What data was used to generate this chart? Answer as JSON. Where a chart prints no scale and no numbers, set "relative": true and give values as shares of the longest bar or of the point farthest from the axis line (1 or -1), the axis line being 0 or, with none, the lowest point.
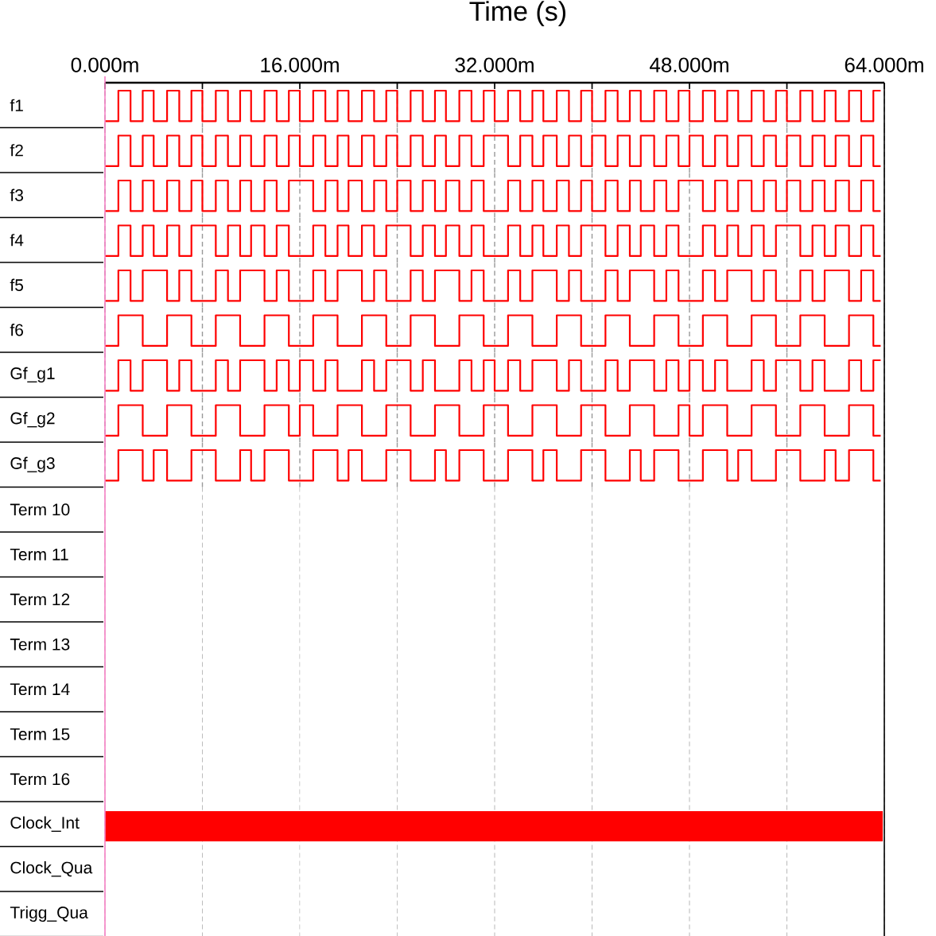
{
  "chart_data": [
    {
      "type": "step",
      "title": "Time (s)",
      "ylabel": "f1",
      "relative": true,
      "xlim": [
        0,
        64
      ],
      "xticks": [
        {
          "value": 0,
          "label": "0.000m"
        },
        {
          "value": 8,
          "label": null
        },
        {
          "value": 16,
          "label": "16.000m"
        },
        {
          "value": 24,
          "label": null
        },
        {
          "value": 32,
          "label": "32.000m"
        },
        {
          "value": 40,
          "label": null
        },
        {
          "value": 48,
          "label": "48.000m"
        },
        {
          "value": 56,
          "label": null
        },
        {
          "value": 64,
          "label": "64.000m"
        }
      ],
      "tick_labels": "x",
      "grid": "x",
      "color": "#ff0000",
      "x": [
        0,
        1.1,
        2.1,
        3.1,
        4,
        5.1,
        6.1,
        7.1,
        8,
        9.1,
        10.1,
        11.1,
        12,
        13.1,
        14.1,
        15.1,
        16,
        17.1,
        18.1,
        19.1,
        20,
        21.1,
        22.1,
        23.1,
        24,
        25.1,
        26.1,
        27.1,
        28,
        29.1,
        30.1,
        31.1,
        32,
        33.1,
        34.1,
        35.1,
        36,
        37.1,
        38.1,
        39.1,
        40,
        41.1,
        42.1,
        43.1,
        44,
        45.1,
        46.1,
        47.1,
        48,
        49.1,
        50.1,
        51.1,
        52,
        53.1,
        54.1,
        55.1,
        56,
        57.1,
        58.1,
        59.1,
        60,
        61.1,
        62.1,
        63.1,
        63.7
      ],
      "values": [
        0,
        1,
        0,
        1,
        0,
        1,
        0,
        1,
        0,
        1,
        0,
        1,
        0,
        1,
        0,
        1,
        0,
        1,
        0,
        1,
        0,
        1,
        0,
        1,
        0,
        1,
        0,
        1,
        0,
        1,
        0,
        1,
        0,
        1,
        0,
        1,
        0,
        1,
        0,
        1,
        0,
        1,
        0,
        1,
        0,
        1,
        0,
        1,
        0,
        1,
        0,
        1,
        0,
        1,
        0,
        1,
        0,
        1,
        0,
        1,
        0,
        1,
        0,
        1,
        1
      ]
    },
    {
      "type": "step",
      "ylabel": "f2",
      "relative": true,
      "xlim": [
        0,
        64
      ],
      "xticks": [
        0,
        8,
        16,
        24,
        32,
        40,
        48,
        56,
        64
      ],
      "tick_labels": false,
      "grid": "x",
      "color": "#ff0000",
      "x": [
        0,
        1.1,
        2.1,
        3.1,
        4,
        5.1,
        6.1,
        7.1,
        8,
        9.1,
        10.1,
        11.1,
        12,
        13.1,
        14.1,
        15.1,
        16,
        17.1,
        18.1,
        19.1,
        20,
        21.1,
        22.1,
        23.1,
        24,
        25.1,
        26.1,
        27.1,
        28,
        29.1,
        30.1,
        31.1,
        32,
        33.1,
        34.1,
        35.1,
        36,
        37.1,
        38.1,
        39.1,
        40,
        41.1,
        42.1,
        43.1,
        44,
        45.1,
        46.1,
        47.1,
        48,
        49.1,
        50.1,
        51.1,
        52,
        53.1,
        54.1,
        55.1,
        56,
        57.1,
        58.1,
        59.1,
        60,
        61.1,
        62.1,
        63.1,
        63.7
      ],
      "values": [
        0,
        1,
        0,
        1,
        0,
        1,
        0,
        1,
        0,
        1,
        0,
        1,
        0,
        1,
        0,
        1,
        0,
        1,
        0,
        1,
        0,
        1,
        0,
        1,
        0,
        1,
        0,
        1,
        0,
        1,
        0,
        1,
        1,
        0,
        1,
        0,
        1,
        0,
        1,
        0,
        1,
        0,
        1,
        0,
        1,
        0,
        1,
        0,
        1,
        0,
        1,
        0,
        1,
        0,
        1,
        0,
        1,
        0,
        1,
        0,
        1,
        0,
        1,
        0,
        0
      ]
    },
    {
      "type": "step",
      "ylabel": "f3",
      "relative": true,
      "xlim": [
        0,
        64
      ],
      "xticks": [
        0,
        8,
        16,
        24,
        32,
        40,
        48,
        56,
        64
      ],
      "tick_labels": false,
      "grid": "x",
      "color": "#ff0000",
      "x": [
        0,
        1.1,
        2.1,
        3.1,
        4,
        5.1,
        6.1,
        7.1,
        8,
        9.1,
        10.1,
        11.1,
        12,
        13.1,
        14.1,
        15.1,
        16,
        17.1,
        18.1,
        19.1,
        20,
        21.1,
        22.1,
        23.1,
        24,
        25.1,
        26.1,
        27.1,
        28,
        29.1,
        30.1,
        31.1,
        32,
        33.1,
        34.1,
        35.1,
        36,
        37.1,
        38.1,
        39.1,
        40,
        41.1,
        42.1,
        43.1,
        44,
        45.1,
        46.1,
        47.1,
        48,
        49.1,
        50.1,
        51.1,
        52,
        53.1,
        54.1,
        55.1,
        56,
        57.1,
        58.1,
        59.1,
        60,
        61.1,
        62.1,
        63.1,
        63.7
      ],
      "values": [
        0,
        1,
        0,
        1,
        0,
        1,
        0,
        1,
        0,
        1,
        0,
        1,
        0,
        1,
        0,
        1,
        1,
        0,
        1,
        0,
        1,
        0,
        1,
        0,
        1,
        0,
        1,
        0,
        1,
        0,
        1,
        0,
        0,
        1,
        0,
        1,
        0,
        1,
        0,
        1,
        0,
        1,
        0,
        1,
        0,
        1,
        0,
        1,
        1,
        0,
        1,
        0,
        1,
        0,
        1,
        0,
        1,
        0,
        1,
        0,
        1,
        0,
        1,
        0,
        0
      ]
    },
    {
      "type": "step",
      "ylabel": "f4",
      "relative": true,
      "xlim": [
        0,
        64
      ],
      "xticks": [
        0,
        8,
        16,
        24,
        32,
        40,
        48,
        56,
        64
      ],
      "tick_labels": false,
      "grid": "x",
      "color": "#ff0000",
      "x": [
        0,
        1.1,
        2.1,
        3.1,
        4,
        5.1,
        6.1,
        7.1,
        8,
        9.1,
        10.1,
        11.1,
        12,
        13.1,
        14.1,
        15.1,
        16,
        17.1,
        18.1,
        19.1,
        20,
        21.1,
        22.1,
        23.1,
        24,
        25.1,
        26.1,
        27.1,
        28,
        29.1,
        30.1,
        31.1,
        32,
        33.1,
        34.1,
        35.1,
        36,
        37.1,
        38.1,
        39.1,
        40,
        41.1,
        42.1,
        43.1,
        44,
        45.1,
        46.1,
        47.1,
        48,
        49.1,
        50.1,
        51.1,
        52,
        53.1,
        54.1,
        55.1,
        56,
        57.1,
        58.1,
        59.1,
        60,
        61.1,
        62.1,
        63.1,
        63.7
      ],
      "values": [
        0,
        1,
        0,
        1,
        0,
        1,
        0,
        1,
        1,
        0,
        1,
        0,
        1,
        0,
        1,
        0,
        0,
        1,
        0,
        1,
        0,
        1,
        0,
        1,
        1,
        0,
        1,
        0,
        1,
        0,
        1,
        0,
        0,
        1,
        0,
        1,
        0,
        1,
        0,
        1,
        1,
        0,
        1,
        0,
        1,
        0,
        1,
        0,
        0,
        1,
        0,
        1,
        0,
        1,
        0,
        1,
        1,
        0,
        1,
        0,
        1,
        0,
        1,
        0,
        0
      ]
    },
    {
      "type": "step",
      "ylabel": "f5",
      "relative": true,
      "xlim": [
        0,
        64
      ],
      "xticks": [
        0,
        8,
        16,
        24,
        32,
        40,
        48,
        56,
        64
      ],
      "tick_labels": false,
      "grid": "x",
      "color": "#ff0000",
      "x": [
        0,
        1.1,
        2.1,
        3.1,
        4,
        5.1,
        6.1,
        7.1,
        8,
        9.1,
        10.1,
        11.1,
        12,
        13.1,
        14.1,
        15.1,
        16,
        17.1,
        18.1,
        19.1,
        20,
        21.1,
        22.1,
        23.1,
        24,
        25.1,
        26.1,
        27.1,
        28,
        29.1,
        30.1,
        31.1,
        32,
        33.1,
        34.1,
        35.1,
        36,
        37.1,
        38.1,
        39.1,
        40,
        41.1,
        42.1,
        43.1,
        44,
        45.1,
        46.1,
        47.1,
        48,
        49.1,
        50.1,
        51.1,
        52,
        53.1,
        54.1,
        55.1,
        56,
        57.1,
        58.1,
        59.1,
        60,
        61.1,
        62.1,
        63.1,
        63.7
      ],
      "values": [
        0,
        1,
        0,
        1,
        1,
        0,
        1,
        0,
        0,
        1,
        0,
        1,
        1,
        0,
        1,
        0,
        0,
        1,
        0,
        1,
        1,
        0,
        1,
        0,
        0,
        1,
        0,
        1,
        1,
        0,
        1,
        0,
        0,
        1,
        0,
        1,
        1,
        0,
        1,
        0,
        0,
        1,
        0,
        1,
        1,
        0,
        1,
        0,
        0,
        1,
        0,
        1,
        1,
        0,
        1,
        0,
        0,
        1,
        0,
        1,
        1,
        0,
        1,
        0,
        0
      ]
    },
    {
      "type": "step",
      "ylabel": "f6",
      "relative": true,
      "xlim": [
        0,
        64
      ],
      "xticks": [
        0,
        8,
        16,
        24,
        32,
        40,
        48,
        56,
        64
      ],
      "tick_labels": false,
      "grid": "x",
      "color": "#ff0000",
      "x": [
        0,
        1.1,
        2.1,
        3.1,
        4,
        5.1,
        6.1,
        7.1,
        8,
        9.1,
        10.1,
        11.1,
        12,
        13.1,
        14.1,
        15.1,
        16,
        17.1,
        18.1,
        19.1,
        20,
        21.1,
        22.1,
        23.1,
        24,
        25.1,
        26.1,
        27.1,
        28,
        29.1,
        30.1,
        31.1,
        32,
        33.1,
        34.1,
        35.1,
        36,
        37.1,
        38.1,
        39.1,
        40,
        41.1,
        42.1,
        43.1,
        44,
        45.1,
        46.1,
        47.1,
        48,
        49.1,
        50.1,
        51.1,
        52,
        53.1,
        54.1,
        55.1,
        56,
        57.1,
        58.1,
        59.1,
        60,
        61.1,
        62.1,
        63.1,
        63.7
      ],
      "values": [
        0,
        1,
        1,
        0,
        0,
        1,
        1,
        0,
        0,
        1,
        1,
        0,
        0,
        1,
        1,
        0,
        0,
        1,
        1,
        0,
        0,
        1,
        1,
        0,
        0,
        1,
        1,
        0,
        0,
        1,
        1,
        0,
        0,
        1,
        1,
        0,
        0,
        1,
        1,
        0,
        0,
        1,
        1,
        0,
        0,
        1,
        1,
        0,
        0,
        1,
        1,
        0,
        0,
        1,
        1,
        0,
        0,
        1,
        1,
        0,
        0,
        1,
        1,
        0,
        0
      ]
    },
    {
      "type": "step",
      "ylabel": "Gf_g1",
      "relative": true,
      "xlim": [
        0,
        64
      ],
      "xticks": [
        0,
        8,
        16,
        24,
        32,
        40,
        48,
        56,
        64
      ],
      "tick_labels": false,
      "grid": "x",
      "color": "#ff0000",
      "x": [
        0,
        1.1,
        2.1,
        3.1,
        4,
        5.1,
        6.1,
        7.1,
        8,
        9.1,
        10.1,
        11.1,
        12,
        13.1,
        14.1,
        15.1,
        16,
        17.1,
        18.1,
        19.1,
        20,
        21.1,
        22.1,
        23.1,
        24,
        25.1,
        26.1,
        27.1,
        28,
        29.1,
        30.1,
        31.1,
        32,
        33.1,
        34.1,
        35.1,
        36,
        37.1,
        38.1,
        39.1,
        40,
        41.1,
        42.1,
        43.1,
        44,
        45.1,
        46.1,
        47.1,
        48,
        49.1,
        50.1,
        51.1,
        52,
        53.1,
        54.1,
        55.1,
        56,
        57.1,
        58.1,
        59.1,
        60,
        61.1,
        62.1,
        63.1,
        63.7
      ],
      "values": [
        0,
        1,
        0,
        1,
        1,
        0,
        1,
        0,
        0,
        1,
        0,
        1,
        1,
        0,
        1,
        0,
        1,
        0,
        1,
        0,
        0,
        1,
        0,
        1,
        1,
        0,
        1,
        0,
        0,
        1,
        0,
        1,
        0,
        1,
        0,
        1,
        1,
        0,
        1,
        0,
        0,
        1,
        0,
        1,
        1,
        0,
        1,
        0,
        1,
        0,
        1,
        0,
        0,
        1,
        0,
        1,
        1,
        0,
        1,
        0,
        0,
        1,
        0,
        1,
        1
      ]
    },
    {
      "type": "step",
      "ylabel": "Gf_g2",
      "relative": true,
      "xlim": [
        0,
        64
      ],
      "xticks": [
        0,
        8,
        16,
        24,
        32,
        40,
        48,
        56,
        64
      ],
      "tick_labels": false,
      "grid": "x",
      "color": "#ff0000",
      "x": [
        0,
        1.1,
        2.1,
        3.1,
        4,
        5.1,
        6.1,
        7.1,
        8,
        9.1,
        10.1,
        11.1,
        12,
        13.1,
        14.1,
        15.1,
        16,
        17.1,
        18.1,
        19.1,
        20,
        21.1,
        22.1,
        23.1,
        24,
        25.1,
        26.1,
        27.1,
        28,
        29.1,
        30.1,
        31.1,
        32,
        33.1,
        34.1,
        35.1,
        36,
        37.1,
        38.1,
        39.1,
        40,
        41.1,
        42.1,
        43.1,
        44,
        45.1,
        46.1,
        47.1,
        48,
        49.1,
        50.1,
        51.1,
        52,
        53.1,
        54.1,
        55.1,
        56,
        57.1,
        58.1,
        59.1,
        60,
        61.1,
        62.1,
        63.1,
        63.7
      ],
      "values": [
        0,
        1,
        1,
        0,
        0,
        1,
        1,
        0,
        0,
        1,
        1,
        0,
        0,
        1,
        1,
        0,
        1,
        0,
        0,
        1,
        1,
        0,
        0,
        1,
        1,
        0,
        0,
        1,
        1,
        0,
        0,
        1,
        1,
        0,
        0,
        1,
        1,
        0,
        0,
        1,
        1,
        0,
        0,
        1,
        1,
        0,
        0,
        1,
        0,
        1,
        1,
        0,
        0,
        1,
        1,
        0,
        0,
        1,
        1,
        0,
        0,
        1,
        1,
        0,
        0
      ]
    },
    {
      "type": "step",
      "ylabel": "Gf_g3",
      "relative": true,
      "xlim": [
        0,
        64
      ],
      "xticks": [
        0,
        8,
        16,
        24,
        32,
        40,
        48,
        56,
        64
      ],
      "tick_labels": false,
      "grid": "x",
      "color": "#ff0000",
      "x": [
        0,
        1.1,
        2.1,
        3.1,
        4,
        5.1,
        6.1,
        7.1,
        8,
        9.1,
        10.1,
        11.1,
        12,
        13.1,
        14.1,
        15.1,
        16,
        17.1,
        18.1,
        19.1,
        20,
        21.1,
        22.1,
        23.1,
        24,
        25.1,
        26.1,
        27.1,
        28,
        29.1,
        30.1,
        31.1,
        32,
        33.1,
        34.1,
        35.1,
        36,
        37.1,
        38.1,
        39.1,
        40,
        41.1,
        42.1,
        43.1,
        44,
        45.1,
        46.1,
        47.1,
        48,
        49.1,
        50.1,
        51.1,
        52,
        53.1,
        54.1,
        55.1,
        56,
        57.1,
        58.1,
        59.1,
        60,
        61.1,
        62.1,
        63.1,
        63.7
      ],
      "values": [
        0,
        1,
        1,
        0,
        1,
        0,
        0,
        1,
        1,
        0,
        0,
        1,
        0,
        1,
        1,
        0,
        0,
        1,
        1,
        0,
        1,
        0,
        0,
        1,
        1,
        0,
        0,
        1,
        0,
        1,
        1,
        0,
        0,
        1,
        1,
        0,
        1,
        0,
        0,
        1,
        1,
        0,
        0,
        1,
        0,
        1,
        1,
        0,
        0,
        1,
        1,
        0,
        1,
        0,
        0,
        1,
        1,
        0,
        0,
        1,
        0,
        1,
        1,
        0,
        0
      ]
    },
    {
      "type": "other",
      "annotations": [
        "Term 10",
        "Term 11",
        "Term 12",
        "Term 13",
        "Term 14",
        "Term 15",
        "Term 16",
        "Clock_Int",
        "Clock_Qua",
        "Trigg_Qua"
      ]
    }
  ]
}
